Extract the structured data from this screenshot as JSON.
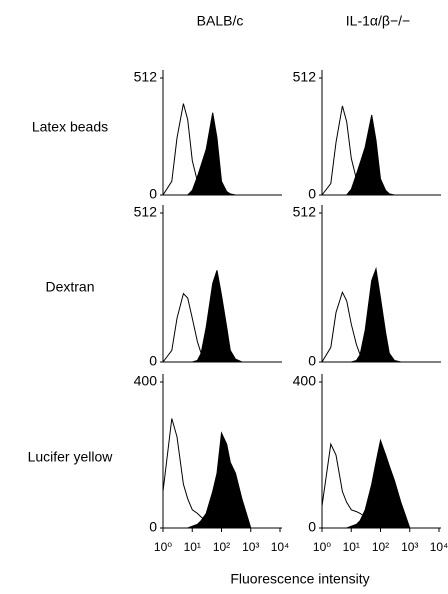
{
  "figure": {
    "column_titles": [
      "BALB/c",
      "IL-1α/β−/−"
    ],
    "row_labels": [
      "Latex beads",
      "Dextran",
      "Lucifer yellow"
    ],
    "x_label": "Fluorescence intensity"
  },
  "chart_data": [
    {
      "type": "area",
      "x": [
        1,
        2,
        3,
        5,
        7,
        10,
        15,
        20,
        30,
        50,
        70,
        100,
        150,
        200,
        300,
        500,
        1000
      ],
      "xlim": [
        1,
        10000
      ],
      "log_x": true,
      "ylim": [
        0,
        512
      ],
      "yticks": [
        0,
        512
      ],
      "series": [
        {
          "color": "#000000",
          "fill": false,
          "values": [
            0,
            60,
            250,
            400,
            330,
            150,
            60,
            30,
            10,
            5,
            0,
            0,
            0,
            0,
            0,
            0,
            0
          ]
        },
        {
          "color": "#000000",
          "fill": true,
          "values": [
            0,
            0,
            0,
            0,
            0,
            20,
            80,
            130,
            200,
            360,
            250,
            60,
            15,
            5,
            0,
            0,
            0
          ]
        }
      ]
    },
    {
      "type": "area",
      "x": [
        1,
        2,
        3,
        5,
        7,
        10,
        15,
        20,
        30,
        50,
        70,
        100,
        150,
        200,
        300,
        500,
        1000
      ],
      "xlim": [
        1,
        10000
      ],
      "log_x": true,
      "ylim": [
        0,
        512
      ],
      "yticks": [
        0,
        512
      ],
      "series": [
        {
          "color": "#000000",
          "fill": false,
          "values": [
            0,
            50,
            230,
            390,
            320,
            160,
            70,
            40,
            15,
            5,
            0,
            0,
            0,
            0,
            0,
            0,
            0
          ]
        },
        {
          "color": "#000000",
          "fill": true,
          "values": [
            0,
            0,
            0,
            0,
            0,
            25,
            90,
            140,
            210,
            350,
            240,
            70,
            20,
            5,
            0,
            0,
            0
          ]
        }
      ]
    },
    {
      "type": "area",
      "x": [
        1,
        2,
        3,
        5,
        7,
        10,
        15,
        20,
        30,
        50,
        70,
        100,
        150,
        200,
        300,
        500,
        1000
      ],
      "xlim": [
        1,
        10000
      ],
      "log_x": true,
      "ylim": [
        0,
        512
      ],
      "yticks": [
        0,
        512
      ],
      "series": [
        {
          "color": "#000000",
          "fill": false,
          "values": [
            0,
            40,
            150,
            235,
            220,
            150,
            70,
            30,
            10,
            0,
            0,
            0,
            0,
            0,
            0,
            0,
            0
          ]
        },
        {
          "color": "#000000",
          "fill": true,
          "values": [
            0,
            0,
            0,
            0,
            0,
            0,
            5,
            30,
            120,
            270,
            315,
            230,
            120,
            40,
            10,
            0,
            0
          ]
        }
      ]
    },
    {
      "type": "area",
      "x": [
        1,
        2,
        3,
        5,
        7,
        10,
        15,
        20,
        30,
        50,
        70,
        100,
        150,
        200,
        300,
        500,
        1000
      ],
      "xlim": [
        1,
        10000
      ],
      "log_x": true,
      "ylim": [
        0,
        512
      ],
      "yticks": [
        0,
        512
      ],
      "series": [
        {
          "color": "#000000",
          "fill": false,
          "values": [
            0,
            50,
            170,
            240,
            210,
            130,
            60,
            25,
            8,
            0,
            0,
            0,
            0,
            0,
            0,
            0,
            0
          ]
        },
        {
          "color": "#000000",
          "fill": true,
          "values": [
            0,
            0,
            0,
            0,
            0,
            0,
            5,
            25,
            110,
            280,
            320,
            220,
            100,
            30,
            5,
            0,
            0
          ]
        }
      ]
    },
    {
      "type": "area",
      "x": [
        1,
        2,
        3,
        5,
        7,
        10,
        15,
        20,
        30,
        50,
        70,
        100,
        150,
        200,
        300,
        500,
        1000
      ],
      "xlim": [
        1,
        10000
      ],
      "log_x": true,
      "ylim": [
        0,
        400
      ],
      "yticks": [
        0,
        400
      ],
      "xticks": [
        {
          "value": 1,
          "label": "10⁰"
        },
        {
          "value": 10,
          "label": "10¹"
        },
        {
          "value": 100,
          "label": "10²"
        },
        {
          "value": 1000,
          "label": "10³"
        },
        {
          "value": 10000,
          "label": "10⁴"
        }
      ],
      "series": [
        {
          "color": "#000000",
          "fill": false,
          "values": [
            100,
            300,
            250,
            120,
            80,
            50,
            40,
            30,
            20,
            10,
            5,
            0,
            0,
            0,
            0,
            0,
            0
          ]
        },
        {
          "color": "#000000",
          "fill": true,
          "values": [
            0,
            0,
            0,
            0,
            0,
            5,
            10,
            20,
            40,
            100,
            150,
            260,
            230,
            180,
            150,
            80,
            0
          ]
        }
      ]
    },
    {
      "type": "area",
      "x": [
        1,
        2,
        3,
        5,
        7,
        10,
        15,
        20,
        30,
        50,
        70,
        100,
        150,
        200,
        300,
        500,
        1000
      ],
      "xlim": [
        1,
        10000
      ],
      "log_x": true,
      "ylim": [
        0,
        400
      ],
      "yticks": [
        0,
        400
      ],
      "xticks": [
        {
          "value": 1,
          "label": "10⁰"
        },
        {
          "value": 10,
          "label": "10¹"
        },
        {
          "value": 100,
          "label": "10²"
        },
        {
          "value": 1000,
          "label": "10³"
        },
        {
          "value": 10000,
          "label": "10⁴"
        }
      ],
      "series": [
        {
          "color": "#000000",
          "fill": false,
          "values": [
            60,
            230,
            200,
            100,
            70,
            50,
            45,
            40,
            30,
            15,
            5,
            0,
            0,
            0,
            0,
            0,
            0
          ]
        },
        {
          "color": "#000000",
          "fill": true,
          "values": [
            0,
            0,
            0,
            0,
            0,
            5,
            10,
            20,
            50,
            120,
            180,
            240,
            200,
            170,
            130,
            70,
            0
          ]
        }
      ]
    }
  ]
}
